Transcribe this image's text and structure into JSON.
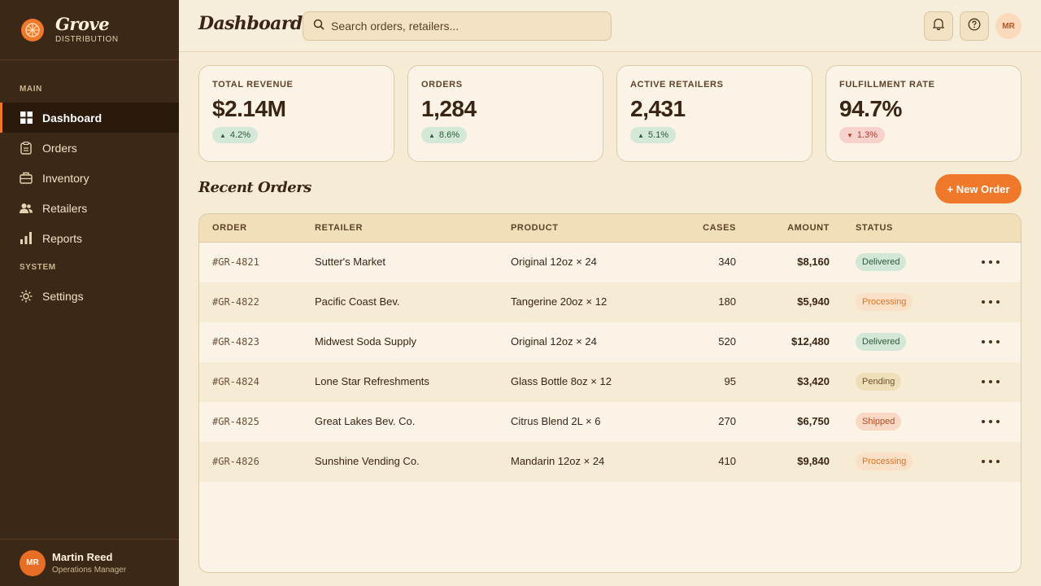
{
  "brand": {
    "name": "Grove",
    "subtitle": "DISTRIBUTION"
  },
  "nav": {
    "main_label": "MAIN",
    "system_label": "SYSTEM",
    "items": [
      {
        "label": "Dashboard",
        "icon": "grid-icon",
        "active": true
      },
      {
        "label": "Orders",
        "icon": "clipboard-icon"
      },
      {
        "label": "Inventory",
        "icon": "box-icon"
      },
      {
        "label": "Retailers",
        "icon": "users-icon"
      },
      {
        "label": "Reports",
        "icon": "bar-chart-icon"
      }
    ],
    "system_items": [
      {
        "label": "Settings",
        "icon": "gear-icon"
      }
    ]
  },
  "user": {
    "initials": "MR",
    "name": "Martin Reed",
    "role": "Operations Manager"
  },
  "header": {
    "title": "Dashboard",
    "search_placeholder": "Search orders, retailers...",
    "avatar_initials": "MR"
  },
  "stats": [
    {
      "label": "TOTAL REVENUE",
      "value": "$2.14M",
      "change": "4.2%",
      "direction": "up"
    },
    {
      "label": "ORDERS",
      "value": "1,284",
      "change": "8.6%",
      "direction": "up"
    },
    {
      "label": "ACTIVE RETAILERS",
      "value": "2,431",
      "change": "5.1%",
      "direction": "up"
    },
    {
      "label": "FULFILLMENT RATE",
      "value": "94.7%",
      "change": "1.3%",
      "direction": "down"
    }
  ],
  "recent_orders": {
    "title": "Recent Orders",
    "new_button": "+ New Order",
    "columns": [
      "ORDER",
      "RETAILER",
      "PRODUCT",
      "CASES",
      "AMOUNT",
      "STATUS"
    ],
    "rows": [
      {
        "order": "#GR-4821",
        "retailer": "Sutter's Market",
        "product": "Original 12oz × 24",
        "cases": "340",
        "amount": "$8,160",
        "status": "Delivered"
      },
      {
        "order": "#GR-4822",
        "retailer": "Pacific Coast Bev.",
        "product": "Tangerine 20oz × 12",
        "cases": "180",
        "amount": "$5,940",
        "status": "Processing"
      },
      {
        "order": "#GR-4823",
        "retailer": "Midwest Soda Supply",
        "product": "Original 12oz × 24",
        "cases": "520",
        "amount": "$12,480",
        "status": "Delivered"
      },
      {
        "order": "#GR-4824",
        "retailer": "Lone Star Refreshments",
        "product": "Glass Bottle 8oz × 12",
        "cases": "95",
        "amount": "$3,420",
        "status": "Pending"
      },
      {
        "order": "#GR-4825",
        "retailer": "Great Lakes Bev. Co.",
        "product": "Citrus Blend 2L × 6",
        "cases": "270",
        "amount": "$6,750",
        "status": "Shipped"
      },
      {
        "order": "#GR-4826",
        "retailer": "Sunshine Vending Co.",
        "product": "Mandarin 12oz × 24",
        "cases": "410",
        "amount": "$9,840",
        "status": "Processing"
      }
    ]
  },
  "colors": {
    "accent": "#f0782a",
    "sidebar": "#3c2816",
    "background": "#f6ecd6"
  }
}
